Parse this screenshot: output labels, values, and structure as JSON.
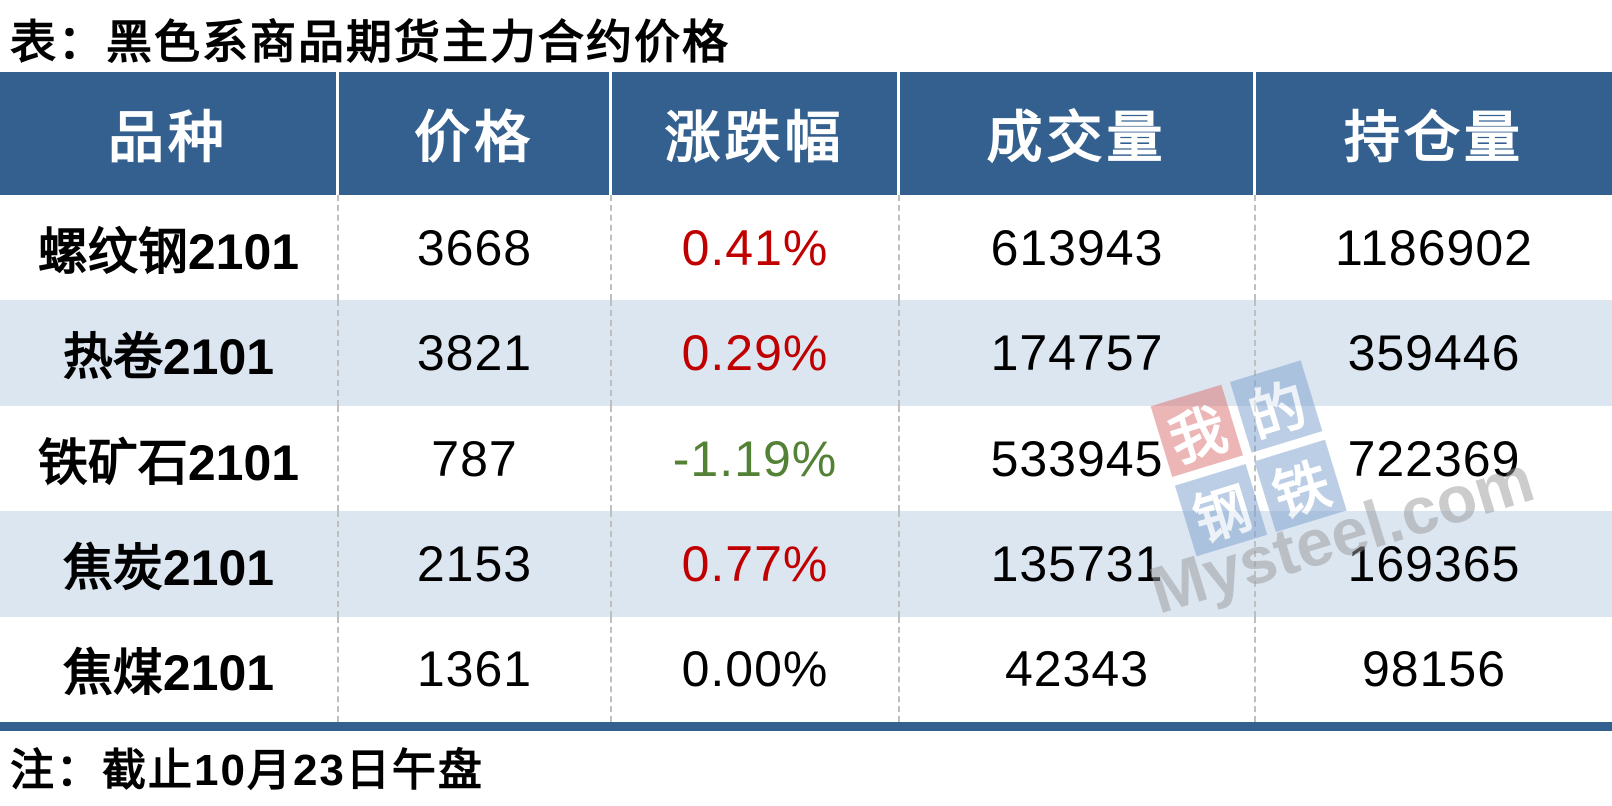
{
  "title": "表：黑色系商品期货主力合约价格",
  "note": "注：截止10月23日午盘",
  "chart_data": {
    "type": "table",
    "title": "表：黑色系商品期货主力合约价格",
    "columns": [
      "品种",
      "价格",
      "涨跌幅",
      "成交量",
      "持仓量"
    ],
    "rows": [
      {
        "name": "螺纹钢2101",
        "price": "3668",
        "change": "0.41%",
        "change_dir": "up",
        "volume": "613943",
        "open_interest": "1186902"
      },
      {
        "name": "热卷2101",
        "price": "3821",
        "change": "0.29%",
        "change_dir": "up",
        "volume": "174757",
        "open_interest": "359446"
      },
      {
        "name": "铁矿石2101",
        "price": "787",
        "change": "-1.19%",
        "change_dir": "down",
        "volume": "533945",
        "open_interest": "722369"
      },
      {
        "name": "焦炭2101",
        "price": "2153",
        "change": "0.77%",
        "change_dir": "up",
        "volume": "135731",
        "open_interest": "169365"
      },
      {
        "name": "焦煤2101",
        "price": "1361",
        "change": "0.00%",
        "change_dir": "flat",
        "volume": "42343",
        "open_interest": "98156"
      }
    ],
    "note": "注：截止10月23日午盘"
  },
  "colors": {
    "header_bg": "#33608E",
    "alt_row_bg": "#DCE6F1",
    "up_red": "#C00000",
    "down_green": "#538135",
    "flat_black": "#000000",
    "bottom_bar": "#33608E",
    "divider_gray": "#BFBFBF"
  },
  "watermark": {
    "tiles": [
      {
        "char": "我",
        "color": "red"
      },
      {
        "char": "的",
        "color": "blue"
      },
      {
        "char": "钢",
        "color": "blue"
      },
      {
        "char": "铁",
        "color": "blue"
      }
    ],
    "text": "Mysteel.com"
  }
}
